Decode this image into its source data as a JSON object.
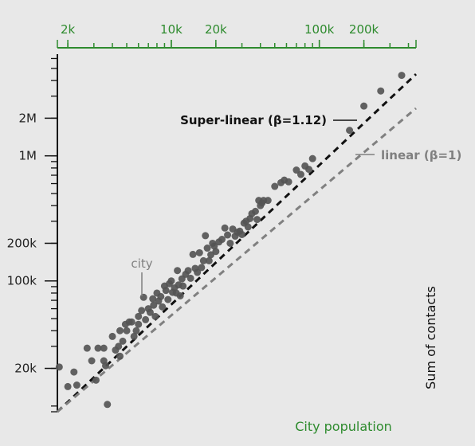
{
  "chart_data": {
    "type": "scatter",
    "xlabel": "City population",
    "ylabel": "Sum of contacts",
    "x_scale": "log",
    "y_scale": "log",
    "xlim": [
      1700,
      450000
    ],
    "ylim": [
      9000,
      6500000
    ],
    "x_ticks": [
      {
        "value": 2000,
        "label": "2k"
      },
      {
        "value": 10000,
        "label": "10k"
      },
      {
        "value": 20000,
        "label": "20k"
      },
      {
        "value": 100000,
        "label": "100k"
      },
      {
        "value": 200000,
        "label": "200k"
      }
    ],
    "y_ticks": [
      {
        "value": 20000,
        "label": "20k"
      },
      {
        "value": 100000,
        "label": "100k"
      },
      {
        "value": 200000,
        "label": "200k"
      },
      {
        "value": 1000000,
        "label": "1M"
      },
      {
        "value": 2000000,
        "label": "2M"
      }
    ],
    "annotations": {
      "super_linear": "Super-linear (β=1.12)",
      "linear": "linear (β=1)",
      "city": "city"
    },
    "fit_lines": [
      {
        "beta": 1.12,
        "style": "dashed",
        "color": "#111111",
        "from": [
          1700,
          9000
        ],
        "to": [
          450000,
          4500000
        ]
      },
      {
        "beta": 1.0,
        "style": "dashed",
        "color": "#808080",
        "from": [
          1700,
          9000
        ],
        "to": [
          450000,
          2400000
        ]
      }
    ],
    "point_color": "#555555",
    "points": [
      [
        1750,
        20500
      ],
      [
        2000,
        14300
      ],
      [
        2200,
        18700
      ],
      [
        2300,
        14700
      ],
      [
        2700,
        29000
      ],
      [
        2900,
        23000
      ],
      [
        3100,
        16100
      ],
      [
        3200,
        29000
      ],
      [
        3500,
        29000
      ],
      [
        3500,
        23000
      ],
      [
        3700,
        10300
      ],
      [
        3600,
        21000
      ],
      [
        4000,
        36000
      ],
      [
        4200,
        28000
      ],
      [
        4400,
        30000
      ],
      [
        4500,
        25000
      ],
      [
        4500,
        40000
      ],
      [
        4700,
        33000
      ],
      [
        4900,
        45000
      ],
      [
        5000,
        40000
      ],
      [
        5200,
        47000
      ],
      [
        5400,
        47000
      ],
      [
        5600,
        36000
      ],
      [
        5800,
        40000
      ],
      [
        6000,
        52000
      ],
      [
        6000,
        45000
      ],
      [
        6300,
        58000
      ],
      [
        6500,
        74000
      ],
      [
        6700,
        49000
      ],
      [
        7000,
        60000
      ],
      [
        7200,
        56000
      ],
      [
        7500,
        72000
      ],
      [
        7600,
        64000
      ],
      [
        7800,
        52000
      ],
      [
        8000,
        80000
      ],
      [
        8200,
        69000
      ],
      [
        8500,
        75000
      ],
      [
        8700,
        62000
      ],
      [
        9000,
        91000
      ],
      [
        9200,
        84000
      ],
      [
        9500,
        71000
      ],
      [
        9700,
        95000
      ],
      [
        10000,
        100000
      ],
      [
        10200,
        81000
      ],
      [
        10500,
        88000
      ],
      [
        10800,
        80000
      ],
      [
        11000,
        121000
      ],
      [
        11200,
        93000
      ],
      [
        11500,
        76000
      ],
      [
        11800,
        104000
      ],
      [
        12000,
        91000
      ],
      [
        12500,
        113000
      ],
      [
        13000,
        121000
      ],
      [
        13500,
        105000
      ],
      [
        14000,
        163000
      ],
      [
        14500,
        126000
      ],
      [
        15000,
        117000
      ],
      [
        15500,
        168000
      ],
      [
        16000,
        128000
      ],
      [
        16500,
        145000
      ],
      [
        17000,
        230000
      ],
      [
        17500,
        183000
      ],
      [
        18000,
        145000
      ],
      [
        18500,
        162000
      ],
      [
        19000,
        200000
      ],
      [
        19500,
        190000
      ],
      [
        20000,
        172000
      ],
      [
        21000,
        205000
      ],
      [
        22000,
        215000
      ],
      [
        23000,
        265000
      ],
      [
        24000,
        233000
      ],
      [
        25000,
        200000
      ],
      [
        26000,
        260000
      ],
      [
        27000,
        228000
      ],
      [
        28000,
        245000
      ],
      [
        29000,
        250000
      ],
      [
        30000,
        235000
      ],
      [
        31000,
        290000
      ],
      [
        32000,
        300000
      ],
      [
        33000,
        270000
      ],
      [
        34000,
        315000
      ],
      [
        35000,
        345000
      ],
      [
        37000,
        360000
      ],
      [
        38000,
        310000
      ],
      [
        39000,
        440000
      ],
      [
        40000,
        400000
      ],
      [
        41000,
        420000
      ],
      [
        42000,
        440000
      ],
      [
        45000,
        440000
      ],
      [
        50000,
        570000
      ],
      [
        55000,
        610000
      ],
      [
        58000,
        640000
      ],
      [
        62000,
        620000
      ],
      [
        70000,
        770000
      ],
      [
        75000,
        710000
      ],
      [
        80000,
        830000
      ],
      [
        85000,
        780000
      ],
      [
        90000,
        950000
      ],
      [
        160000,
        1600000
      ],
      [
        200000,
        2500000
      ],
      [
        260000,
        3300000
      ],
      [
        360000,
        4400000
      ]
    ]
  }
}
